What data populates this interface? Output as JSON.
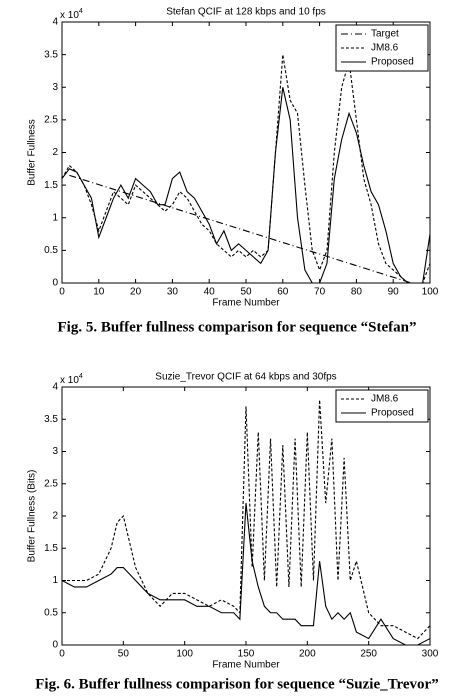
{
  "chart_data": [
    {
      "type": "line",
      "title": "Stefan QCIF at 128 kbps and 10 fps",
      "xlabel": "Frame Number",
      "ylabel": "Buffer Fullness",
      "scale_label": "x 10",
      "scale_exponent": "4",
      "caption": "Fig. 5. Buffer fullness comparison for sequence “Stefan”",
      "xlim": [
        0,
        100
      ],
      "xticks": [
        0,
        10,
        20,
        30,
        40,
        50,
        60,
        70,
        80,
        90,
        100
      ],
      "ylim": [
        0,
        4
      ],
      "yticks": [
        0,
        0.5,
        1,
        1.5,
        2,
        2.5,
        3,
        3.5,
        4
      ],
      "legend": "upper right",
      "series": [
        {
          "name": "Target",
          "color": "#000000",
          "style": "dashdot",
          "x": [
            2,
            95
          ],
          "values": [
            1.65,
            0
          ]
        },
        {
          "name": "JM8.6",
          "color": "#000000",
          "style": "dashed",
          "x": [
            0,
            2,
            4,
            6,
            8,
            10,
            12,
            14,
            16,
            18,
            20,
            22,
            24,
            26,
            28,
            30,
            32,
            34,
            36,
            38,
            40,
            42,
            44,
            46,
            48,
            50,
            52,
            54,
            56,
            58,
            60,
            62,
            64,
            66,
            68,
            70,
            72,
            74,
            76,
            78,
            80,
            82,
            84,
            86,
            88,
            90,
            92,
            94,
            96,
            98,
            100
          ],
          "values": [
            1.6,
            1.8,
            1.7,
            1.5,
            1.2,
            0.8,
            1.1,
            1.4,
            1.3,
            1.2,
            1.5,
            1.4,
            1.3,
            1.2,
            1.1,
            1.2,
            1.4,
            1.3,
            1.1,
            0.9,
            0.8,
            0.6,
            0.5,
            0.4,
            0.5,
            0.4,
            0.5,
            0.4,
            0.5,
            2.0,
            3.5,
            2.8,
            2.6,
            1.5,
            0.5,
            0.2,
            0.5,
            2.0,
            3.0,
            3.4,
            2.5,
            1.6,
            1.2,
            0.6,
            0.3,
            0.2,
            0.1,
            0,
            0,
            0,
            0.3
          ]
        },
        {
          "name": "Proposed",
          "color": "#000000",
          "style": "solid",
          "x": [
            0,
            2,
            4,
            6,
            8,
            10,
            12,
            14,
            16,
            18,
            20,
            22,
            24,
            26,
            28,
            30,
            32,
            34,
            36,
            38,
            40,
            42,
            44,
            46,
            48,
            50,
            52,
            54,
            56,
            58,
            60,
            62,
            64,
            66,
            68,
            70,
            72,
            74,
            76,
            78,
            80,
            82,
            84,
            86,
            88,
            90,
            92,
            94,
            96,
            98,
            100
          ],
          "values": [
            1.6,
            1.75,
            1.7,
            1.5,
            1.3,
            0.7,
            1.0,
            1.3,
            1.5,
            1.3,
            1.6,
            1.5,
            1.4,
            1.2,
            1.2,
            1.6,
            1.7,
            1.4,
            1.3,
            1.1,
            0.9,
            0.6,
            0.8,
            0.5,
            0.6,
            0.5,
            0.4,
            0.3,
            0.5,
            2.0,
            3.0,
            2.5,
            1.0,
            0.2,
            0,
            0,
            0.3,
            1.6,
            2.2,
            2.6,
            2.3,
            1.8,
            1.4,
            1.2,
            0.8,
            0.3,
            0.1,
            0,
            0,
            0,
            0.75
          ]
        }
      ]
    },
    {
      "type": "line",
      "title": "Suzie_Trevor QCIF at 64 kbps and 30fps",
      "xlabel": "Frame Number",
      "ylabel": "Buffer Fullness (Bits)",
      "scale_label": "x 10",
      "scale_exponent": "4",
      "caption": "Fig. 6. Buffer fullness comparison for sequence “Suzie_Trevor”",
      "xlim": [
        0,
        300
      ],
      "xticks": [
        0,
        50,
        100,
        150,
        200,
        250,
        300
      ],
      "ylim": [
        0,
        4
      ],
      "yticks": [
        0,
        0.5,
        1,
        1.5,
        2,
        2.5,
        3,
        3.5,
        4
      ],
      "legend": "upper right",
      "x": [
        0,
        10,
        20,
        30,
        40,
        45,
        50,
        55,
        60,
        70,
        80,
        90,
        100,
        110,
        120,
        130,
        140,
        145,
        150,
        155,
        160,
        165,
        170,
        175,
        180,
        185,
        190,
        195,
        200,
        205,
        210,
        215,
        220,
        225,
        230,
        235,
        240,
        250,
        260,
        270,
        280,
        290,
        300
      ],
      "series": [
        {
          "name": "JM8.6",
          "color": "#000000",
          "style": "dashed",
          "values": [
            1.0,
            1.0,
            1.0,
            1.1,
            1.5,
            1.9,
            2.0,
            1.6,
            1.2,
            0.8,
            0.6,
            0.8,
            0.8,
            0.7,
            0.6,
            0.7,
            0.6,
            0.5,
            3.7,
            1.2,
            3.3,
            1.0,
            3.2,
            0.9,
            3.1,
            0.9,
            3.2,
            0.9,
            3.3,
            1.0,
            3.8,
            2.2,
            3.2,
            1.0,
            2.9,
            1.0,
            1.3,
            0.5,
            0.3,
            0.3,
            0.2,
            0.1,
            0.3
          ]
        },
        {
          "name": "Proposed",
          "color": "#000000",
          "style": "solid",
          "values": [
            1.0,
            0.9,
            0.9,
            1.0,
            1.1,
            1.2,
            1.2,
            1.1,
            1.0,
            0.8,
            0.7,
            0.7,
            0.7,
            0.6,
            0.6,
            0.5,
            0.5,
            0.4,
            2.2,
            1.3,
            0.9,
            0.6,
            0.5,
            0.5,
            0.4,
            0.4,
            0.4,
            0.3,
            0.3,
            0.3,
            1.3,
            0.6,
            0.4,
            0.5,
            0.4,
            0.5,
            0.2,
            0.1,
            0.4,
            0.1,
            0,
            0,
            0.1
          ]
        }
      ]
    }
  ]
}
